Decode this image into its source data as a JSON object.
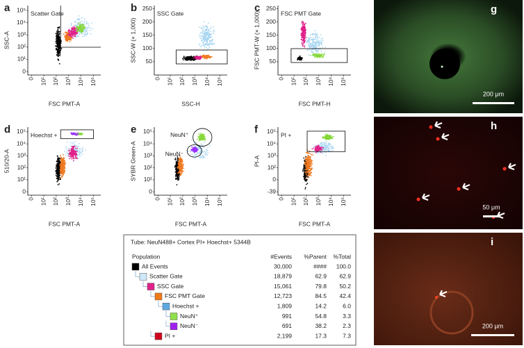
{
  "panels": [
    {
      "letter": "a",
      "gate_label": "Scatter Gate",
      "x_label": "FSC PMT-A",
      "y_label": "SSC-A",
      "x_ticks": [
        "0",
        "10¹",
        "10²",
        "10³",
        "10⁴",
        "10⁵"
      ],
      "y_ticks": [
        "0",
        "10¹",
        "10²",
        "10³",
        "10⁴",
        "10⁵"
      ]
    },
    {
      "letter": "b",
      "gate_label": "SSC Gate",
      "x_label": "SSC-H",
      "y_label": "SSC-W (× 1,000)",
      "x_ticks": [
        "0",
        "10¹",
        "10²",
        "10³",
        "10⁴",
        "10⁵"
      ],
      "y_ticks": [
        50,
        100,
        150,
        200,
        250
      ],
      "ylim": [
        0,
        262
      ]
    },
    {
      "letter": "c",
      "gate_label": "FSC PMT Gate",
      "x_label": "FSC PMT-H",
      "y_label": "FSC PMT-W (× 1,000)",
      "x_ticks": [
        "0",
        "10¹",
        "10²",
        "10³",
        "10⁴",
        "10⁵"
      ],
      "y_ticks": [
        50,
        100,
        150,
        200,
        250
      ],
      "ylim": [
        0,
        262
      ]
    },
    {
      "letter": "d",
      "gate_label": "Hoechst +",
      "x_label": "FSC PMT-A",
      "y_label": "510/20-A",
      "x_ticks": [
        "0",
        "10¹",
        "10²",
        "10³",
        "10⁴",
        "10⁵"
      ],
      "y_ticks": [
        "0",
        "10¹",
        "10²",
        "10³",
        "10⁴",
        "10⁵"
      ]
    },
    {
      "letter": "e",
      "annotations": [
        "NeuN⁺",
        "NeuN⁻"
      ],
      "x_label": "FSC PMT-A",
      "y_label": "SYBR Green-A",
      "x_ticks": [
        "0",
        "10¹",
        "10²",
        "10³",
        "10⁴",
        "10⁵"
      ],
      "y_ticks": [
        "0",
        "10¹",
        "10²",
        "10³",
        "10⁴",
        "10⁵"
      ]
    },
    {
      "letter": "f",
      "gate_label": "PI +",
      "x_label": "FSC PMT-A",
      "y_label": "PI-A",
      "x_ticks": [
        "0",
        "10¹",
        "10²",
        "10³",
        "10⁴",
        "10⁵"
      ],
      "y_ticks": [
        "-39",
        "0",
        "10²",
        "10³",
        "10⁴",
        "10⁵"
      ]
    }
  ],
  "table": {
    "title": "Tube: NeuN488+ Cortex PI+ Hoechst+ 5344B",
    "columns": [
      "Population",
      "#Events",
      "%Parent",
      "%Total"
    ],
    "rows": [
      {
        "name": "All Events",
        "color": "#000000",
        "cells": [
          "30,000",
          "####",
          "100.0"
        ]
      },
      {
        "name": "Scatter Gate",
        "color": "#cfe9f8",
        "cells": [
          "18,879",
          "62.9",
          "62.9"
        ]
      },
      {
        "name": "SSC Gate",
        "color": "#e0218a",
        "cells": [
          "15,061",
          "79.8",
          "50.2"
        ]
      },
      {
        "name": "FSC PMT Gate",
        "color": "#f07a1a",
        "cells": [
          "12,723",
          "84.5",
          "42.4"
        ]
      },
      {
        "name": "Hoechst +",
        "color": "#5ea8e0",
        "cells": [
          "1,809",
          "14.2",
          "6.0"
        ]
      },
      {
        "name": "NeuN⁺",
        "color": "#8fe04a",
        "cells": [
          "991",
          "54.8",
          "3.3"
        ]
      },
      {
        "name": "NeuN⁻",
        "color": "#a020f0",
        "cells": [
          "691",
          "38.2",
          "2.3"
        ]
      },
      {
        "name": "PI +",
        "color": "#d0021b",
        "cells": [
          "2,199",
          "17.3",
          "7.3"
        ]
      }
    ]
  },
  "images": [
    {
      "letter": "g",
      "scale_bar": "200 μm"
    },
    {
      "letter": "h",
      "scale_bar": "50 μm"
    },
    {
      "letter": "i",
      "scale_bar": "200 μm"
    }
  ]
}
